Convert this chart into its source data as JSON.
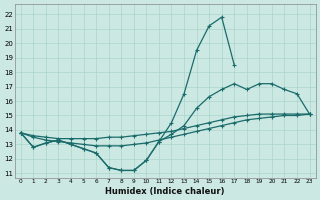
{
  "xlabel": "Humidex (Indice chaleur)",
  "bg_color": "#cce8e2",
  "grid_color": "#aad4cc",
  "line_color": "#1a6b6b",
  "xlim": [
    -0.5,
    23.5
  ],
  "ylim": [
    10.7,
    22.7
  ],
  "xticks": [
    0,
    1,
    2,
    3,
    4,
    5,
    6,
    7,
    8,
    9,
    10,
    11,
    12,
    13,
    14,
    15,
    16,
    17,
    18,
    19,
    20,
    21,
    22,
    23
  ],
  "yticks": [
    11,
    12,
    13,
    14,
    15,
    16,
    17,
    18,
    19,
    20,
    21,
    22
  ],
  "line1_x": [
    0,
    1,
    2,
    3,
    4,
    5,
    6,
    7,
    8,
    9,
    10,
    11,
    12,
    13,
    14,
    15,
    16,
    17
  ],
  "line1_y": [
    13.8,
    12.8,
    13.1,
    13.3,
    13.0,
    12.7,
    12.4,
    11.4,
    11.2,
    11.2,
    11.9,
    13.2,
    14.5,
    16.5,
    19.5,
    21.2,
    21.8,
    18.5
  ],
  "line2_x": [
    0,
    1,
    2,
    3,
    4,
    5,
    6,
    7,
    8,
    9,
    10,
    11,
    12,
    13,
    14,
    15,
    16,
    17,
    18,
    19,
    20,
    21,
    22,
    23
  ],
  "line2_y": [
    13.8,
    12.8,
    13.1,
    13.3,
    13.0,
    12.7,
    12.4,
    11.4,
    11.2,
    11.2,
    11.9,
    13.2,
    13.7,
    14.3,
    15.5,
    16.3,
    16.8,
    17.2,
    16.8,
    17.2,
    17.2,
    16.8,
    16.5,
    15.1
  ],
  "line3_x": [
    0,
    1,
    2,
    3,
    4,
    5,
    6,
    7,
    8,
    9,
    10,
    11,
    12,
    13,
    14,
    15,
    16,
    17,
    18,
    19,
    20,
    21,
    22,
    23
  ],
  "line3_y": [
    13.8,
    13.6,
    13.5,
    13.4,
    13.4,
    13.4,
    13.4,
    13.5,
    13.5,
    13.6,
    13.7,
    13.8,
    13.9,
    14.1,
    14.3,
    14.5,
    14.7,
    14.9,
    15.0,
    15.1,
    15.1,
    15.1,
    15.1,
    15.1
  ],
  "line4_x": [
    0,
    1,
    2,
    3,
    4,
    5,
    6,
    7,
    8,
    9,
    10,
    11,
    12,
    13,
    14,
    15,
    16,
    17,
    18,
    19,
    20,
    21,
    22,
    23
  ],
  "line4_y": [
    13.8,
    13.5,
    13.3,
    13.2,
    13.1,
    13.0,
    12.9,
    12.9,
    12.9,
    13.0,
    13.1,
    13.3,
    13.5,
    13.7,
    13.9,
    14.1,
    14.3,
    14.5,
    14.7,
    14.8,
    14.9,
    15.0,
    15.0,
    15.1
  ]
}
